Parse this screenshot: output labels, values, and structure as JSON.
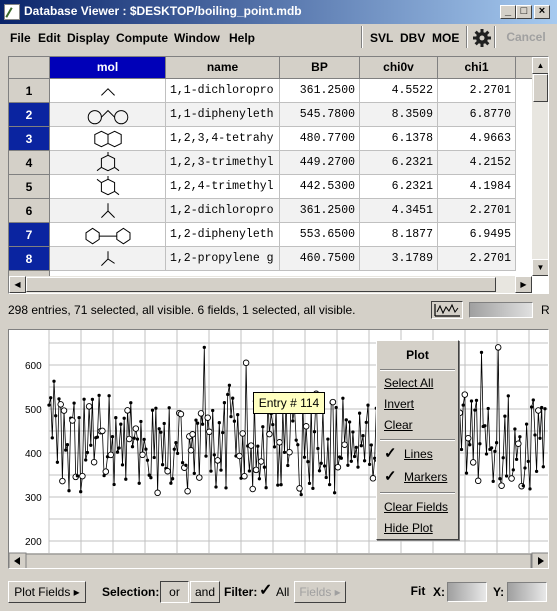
{
  "window": {
    "title": "Database Viewer : $DESKTOP/boiling_point.mdb",
    "min_symbol": "_",
    "max_symbol": "□",
    "close_symbol": "×"
  },
  "menu": {
    "items": [
      "File",
      "Edit",
      "Display",
      "Compute",
      "Window",
      "Help"
    ],
    "tools": [
      "SVL",
      "DBV",
      "MOE"
    ],
    "cancel": "Cancel"
  },
  "table": {
    "columns": [
      "mol",
      "name",
      "BP",
      "chi0v",
      "chi1"
    ],
    "selected_column": "mol",
    "rows": [
      {
        "num": "1",
        "selected": false,
        "name": "1,1-dichloropro",
        "bp": "361.2500",
        "chi0v": "4.5522",
        "chi1": "2.2701"
      },
      {
        "num": "2",
        "selected": true,
        "name": "1,1-diphenyleth",
        "bp": "545.7800",
        "chi0v": "8.3509",
        "chi1": "6.8770"
      },
      {
        "num": "3",
        "selected": true,
        "name": "1,2,3,4-tetrahy",
        "bp": "480.7700",
        "chi0v": "6.1378",
        "chi1": "4.9663"
      },
      {
        "num": "4",
        "selected": false,
        "name": "1,2,3-trimethyl",
        "bp": "449.2700",
        "chi0v": "6.2321",
        "chi1": "4.2152"
      },
      {
        "num": "5",
        "selected": false,
        "name": "1,2,4-trimethyl",
        "bp": "442.5300",
        "chi0v": "6.2321",
        "chi1": "4.1984"
      },
      {
        "num": "6",
        "selected": false,
        "name": "1,2-dichloropro",
        "bp": "361.2500",
        "chi0v": "4.3451",
        "chi1": "2.2701"
      },
      {
        "num": "7",
        "selected": true,
        "name": "1,2-diphenyleth",
        "bp": "553.6500",
        "chi0v": "8.1877",
        "chi1": "6.9495"
      },
      {
        "num": "8",
        "selected": true,
        "name": "1,2-propylene g",
        "bp": "460.7500",
        "chi0v": "3.1789",
        "chi1": "2.2701"
      }
    ]
  },
  "status": {
    "text": "298 entries, 71 selected, all visible. 6 fields, 1 selected, all visible.",
    "r_label": "R"
  },
  "plot": {
    "y_ticks": [
      "600",
      "500",
      "400",
      "300",
      "200"
    ],
    "tooltip": "Entry # 114",
    "line_color": "#000000",
    "grid_color": "#c0c0c0"
  },
  "popup": {
    "title": "Plot",
    "select_all": "Select All",
    "invert": "Invert",
    "clear": "Clear",
    "lines": "Lines",
    "lines_checked": true,
    "markers": "Markers",
    "markers_checked": true,
    "clear_fields": "Clear Fields",
    "hide_plot": "Hide Plot"
  },
  "bottom": {
    "plot_fields": "Plot Fields ▸",
    "selection_label": "Selection:",
    "or": "or",
    "and": "and",
    "filter_label": "Filter:",
    "all": "All",
    "all_checked": true,
    "fields": "Fields ▸",
    "fit": "Fit",
    "x_label": "X:",
    "y_label": "Y:"
  },
  "icons": {
    "app": "database-viewer-icon",
    "gear": "gear-icon",
    "status": "plot-icon"
  }
}
